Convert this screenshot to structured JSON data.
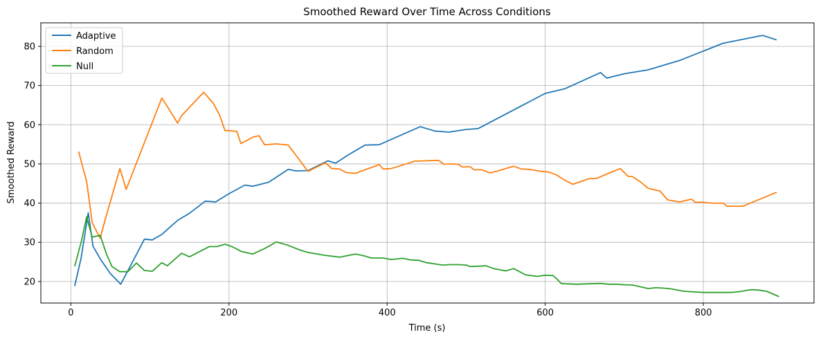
{
  "chart_data": {
    "type": "line",
    "title": "Smoothed Reward Over Time Across Conditions",
    "xlabel": "Time (s)",
    "ylabel": "Smoothed Reward",
    "xlim": [
      -38,
      940
    ],
    "ylim": [
      14.5,
      86
    ],
    "xticks": [
      0,
      200,
      400,
      600,
      800
    ],
    "yticks": [
      20,
      30,
      40,
      50,
      60,
      70,
      80
    ],
    "grid": true,
    "legend_position": "upper-left",
    "series": [
      {
        "name": "Adaptive",
        "color": "#1f77b4",
        "x": [
          5,
          13,
          22,
          28,
          38,
          50,
          63,
          78,
          93,
          103,
          115,
          135,
          150,
          170,
          183,
          200,
          220,
          230,
          250,
          275,
          285,
          300,
          325,
          335,
          350,
          372,
          390,
          442,
          460,
          478,
          500,
          515,
          600,
          625,
          670,
          678,
          700,
          730,
          770,
          825,
          875,
          892
        ],
        "y": [
          19,
          26,
          37.5,
          29,
          25.5,
          22,
          19.3,
          25,
          30.8,
          30.6,
          32,
          35.6,
          37.4,
          40.5,
          40.3,
          42.4,
          44.6,
          44.3,
          45.3,
          48.6,
          48.2,
          48.3,
          50.8,
          50.2,
          52.2,
          54.8,
          54.9,
          59.5,
          58.4,
          58.1,
          58.8,
          59,
          68,
          69.2,
          73.3,
          71.9,
          73,
          74,
          76.4,
          80.8,
          82.8,
          81.7
        ]
      },
      {
        "name": "Random",
        "color": "#ff7f0e",
        "x": [
          10,
          20,
          27,
          37,
          43,
          62,
          70,
          115,
          120,
          135,
          140,
          168,
          180,
          188,
          195,
          200,
          210,
          215,
          230,
          238,
          245,
          260,
          275,
          300,
          322,
          330,
          340,
          348,
          360,
          390,
          395,
          405,
          435,
          450,
          465,
          472,
          480,
          490,
          495,
          505,
          510,
          520,
          530,
          540,
          560,
          570,
          580,
          595,
          605,
          615,
          625,
          635,
          655,
          665,
          680,
          695,
          705,
          710,
          720,
          730,
          740,
          745,
          755,
          770,
          785,
          790,
          800,
          810,
          825,
          830,
          850,
          892
        ],
        "y": [
          53,
          45.5,
          35,
          31,
          35.5,
          48.8,
          43.5,
          66.8,
          65.3,
          60.4,
          62.3,
          68.3,
          65.5,
          62.5,
          58.5,
          58.5,
          58.3,
          55.2,
          56.8,
          57.2,
          54.9,
          55.1,
          54.8,
          48.1,
          50.3,
          48.8,
          48.7,
          47.8,
          47.6,
          49.8,
          48.7,
          48.8,
          50.7,
          50.8,
          50.9,
          49.9,
          50,
          49.9,
          49.2,
          49.3,
          48.5,
          48.5,
          47.7,
          48.2,
          49.4,
          48.7,
          48.6,
          48.1,
          47.9,
          47.1,
          45.8,
          44.8,
          46.2,
          46.3,
          47.6,
          48.8,
          46.8,
          46.8,
          45.5,
          43.8,
          43.3,
          43.1,
          40.8,
          40.3,
          41,
          40.2,
          40.2,
          40,
          40,
          39.2,
          39.2,
          42.7
        ]
      },
      {
        "name": "Null",
        "color": "#2ca02c",
        "x": [
          5,
          13,
          20,
          27,
          37,
          45,
          52,
          62,
          72,
          83,
          93,
          103,
          115,
          122,
          140,
          150,
          175,
          185,
          195,
          205,
          215,
          230,
          245,
          260,
          275,
          290,
          300,
          320,
          340,
          360,
          370,
          380,
          395,
          405,
          420,
          430,
          440,
          450,
          470,
          480,
          490,
          500,
          505,
          515,
          525,
          535,
          550,
          560,
          575,
          590,
          600,
          610,
          615,
          620,
          625,
          640,
          655,
          670,
          680,
          690,
          705,
          710,
          730,
          740,
          750,
          760,
          775,
          800,
          810,
          820,
          835,
          845,
          860,
          870,
          880,
          895
        ],
        "y": [
          24,
          30,
          36.5,
          31.3,
          31.8,
          27,
          23.8,
          22.5,
          22.5,
          24.7,
          22.8,
          22.6,
          24.8,
          24,
          27.2,
          26.3,
          28.9,
          28.9,
          29.5,
          28.8,
          27.7,
          27,
          28.4,
          30.1,
          29.2,
          28,
          27.4,
          26.7,
          26.2,
          27,
          26.6,
          26,
          26,
          25.6,
          25.9,
          25.5,
          25.4,
          24.8,
          24.2,
          24.3,
          24.3,
          24.2,
          23.8,
          23.9,
          24,
          23.3,
          22.7,
          23.3,
          21.7,
          21.3,
          21.6,
          21.5,
          20.6,
          19.5,
          19.4,
          19.3,
          19.4,
          19.5,
          19.3,
          19.3,
          19.1,
          19.1,
          18.2,
          18.4,
          18.3,
          18.1,
          17.5,
          17.2,
          17.2,
          17.2,
          17.2,
          17.4,
          17.9,
          17.8,
          17.5,
          16.2
        ]
      }
    ]
  }
}
